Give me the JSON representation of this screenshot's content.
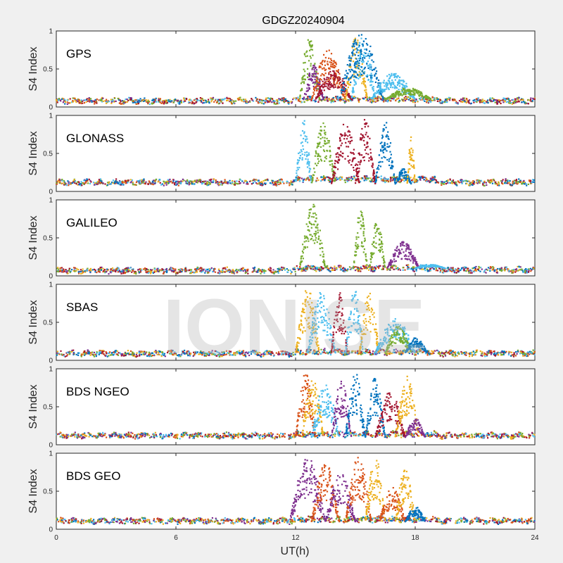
{
  "chart_data": {
    "type": "scatter",
    "title": "GDGZ20240904",
    "xlabel": "UT(h)",
    "ylabel": "S4 Index",
    "xlim": [
      0,
      24
    ],
    "ylim": [
      0,
      1
    ],
    "xticks": [
      0,
      6,
      12,
      18,
      24
    ],
    "yticks": [
      0,
      0.5,
      1
    ],
    "ytick_labels": [
      "0",
      "0.5",
      "1"
    ],
    "watermark": "IONISE",
    "series_colors": [
      "#0072BD",
      "#D95319",
      "#EDB120",
      "#7E2F8E",
      "#77AC30",
      "#4DBEEE",
      "#A2142F"
    ],
    "panels": [
      {
        "name": "GPS",
        "baseline": [
          {
            "x0": 0,
            "x1": 12,
            "y": 0.08
          },
          {
            "x0": 12,
            "x1": 19,
            "y": 0.1
          },
          {
            "x0": 19,
            "x1": 24,
            "y": 0.08
          }
        ],
        "bursts": [
          {
            "color": 4,
            "t0": 12.2,
            "t1": 13.2,
            "peak": 0.95
          },
          {
            "color": 3,
            "t0": 12.4,
            "t1": 13.4,
            "peak": 0.55
          },
          {
            "color": 1,
            "t0": 12.8,
            "t1": 14.5,
            "peak": 0.75
          },
          {
            "color": 6,
            "t0": 13.0,
            "t1": 14.8,
            "peak": 0.5
          },
          {
            "color": 2,
            "t0": 14.5,
            "t1": 15.6,
            "peak": 0.95
          },
          {
            "color": 5,
            "t0": 14.8,
            "t1": 16.0,
            "peak": 0.95
          },
          {
            "color": 0,
            "t0": 14.2,
            "t1": 16.4,
            "peak": 0.98
          },
          {
            "color": 5,
            "t0": 15.8,
            "t1": 18.0,
            "peak": 0.45
          },
          {
            "color": 4,
            "t0": 16.5,
            "t1": 18.8,
            "peak": 0.25
          }
        ]
      },
      {
        "name": "GLONASS",
        "baseline": [
          {
            "x0": 0,
            "x1": 12,
            "y": 0.12
          },
          {
            "x0": 12,
            "x1": 19,
            "y": 0.16
          },
          {
            "x0": 19,
            "x1": 24,
            "y": 0.12
          }
        ],
        "bursts": [
          {
            "color": 5,
            "t0": 12.0,
            "t1": 12.8,
            "peak": 0.95
          },
          {
            "color": 4,
            "t0": 12.8,
            "t1": 14.0,
            "peak": 0.9
          },
          {
            "color": 6,
            "t0": 13.8,
            "t1": 15.2,
            "peak": 0.9
          },
          {
            "color": 6,
            "t0": 15.0,
            "t1": 16.0,
            "peak": 0.95
          },
          {
            "color": 0,
            "t0": 16.0,
            "t1": 17.0,
            "peak": 0.95
          },
          {
            "color": 0,
            "t0": 17.0,
            "t1": 17.8,
            "peak": 0.3
          },
          {
            "color": 2,
            "t0": 17.6,
            "t1": 18.0,
            "peak": 0.75
          }
        ]
      },
      {
        "name": "GALILEO",
        "baseline": [
          {
            "x0": 0,
            "x1": 12,
            "y": 0.07
          },
          {
            "x0": 12,
            "x1": 19,
            "y": 0.1
          },
          {
            "x0": 19,
            "x1": 24,
            "y": 0.08
          }
        ],
        "bursts": [
          {
            "color": 4,
            "t0": 12.2,
            "t1": 13.5,
            "peak": 0.95
          },
          {
            "color": 4,
            "t0": 14.9,
            "t1": 15.6,
            "peak": 0.9
          },
          {
            "color": 4,
            "t0": 15.7,
            "t1": 16.5,
            "peak": 0.75
          },
          {
            "color": 3,
            "t0": 16.6,
            "t1": 18.2,
            "peak": 0.45
          },
          {
            "color": 5,
            "t0": 18.0,
            "t1": 19.5,
            "peak": 0.15
          }
        ]
      },
      {
        "name": "SBAS",
        "baseline": [
          {
            "x0": 0,
            "x1": 12,
            "y": 0.09
          },
          {
            "x0": 12,
            "x1": 19,
            "y": 0.11
          },
          {
            "x0": 19,
            "x1": 24,
            "y": 0.09
          }
        ],
        "bursts": [
          {
            "color": 2,
            "t0": 12.0,
            "t1": 13.2,
            "peak": 0.95
          },
          {
            "color": 5,
            "t0": 12.6,
            "t1": 14.0,
            "peak": 0.9
          },
          {
            "color": 6,
            "t0": 13.8,
            "t1": 14.6,
            "peak": 0.9
          },
          {
            "color": 5,
            "t0": 14.5,
            "t1": 15.4,
            "peak": 0.95
          },
          {
            "color": 2,
            "t0": 15.2,
            "t1": 16.2,
            "peak": 0.9
          },
          {
            "color": 5,
            "t0": 16.0,
            "t1": 18.0,
            "peak": 0.55
          },
          {
            "color": 4,
            "t0": 16.5,
            "t1": 17.8,
            "peak": 0.45
          },
          {
            "color": 0,
            "t0": 17.5,
            "t1": 18.6,
            "peak": 0.3
          }
        ]
      },
      {
        "name": "BDS NGEO",
        "baseline": [
          {
            "x0": 0,
            "x1": 12,
            "y": 0.12
          },
          {
            "x0": 12,
            "x1": 19,
            "y": 0.14
          },
          {
            "x0": 19,
            "x1": 24,
            "y": 0.12
          }
        ],
        "bursts": [
          {
            "color": 1,
            "t0": 12.0,
            "t1": 13.0,
            "peak": 0.95
          },
          {
            "color": 2,
            "t0": 12.3,
            "t1": 13.4,
            "peak": 0.9
          },
          {
            "color": 5,
            "t0": 12.8,
            "t1": 14.2,
            "peak": 0.8
          },
          {
            "color": 3,
            "t0": 13.8,
            "t1": 14.8,
            "peak": 0.85
          },
          {
            "color": 0,
            "t0": 14.5,
            "t1": 15.5,
            "peak": 0.95
          },
          {
            "color": 0,
            "t0": 15.5,
            "t1": 16.5,
            "peak": 0.9
          },
          {
            "color": 6,
            "t0": 16.0,
            "t1": 17.5,
            "peak": 0.7
          },
          {
            "color": 2,
            "t0": 17.0,
            "t1": 18.2,
            "peak": 0.9
          },
          {
            "color": 3,
            "t0": 17.5,
            "t1": 18.5,
            "peak": 0.35
          }
        ]
      },
      {
        "name": "BDS GEO",
        "baseline": [
          {
            "x0": 0,
            "x1": 12,
            "y": 0.11
          },
          {
            "x0": 12,
            "x1": 19,
            "y": 0.13
          },
          {
            "x0": 19,
            "x1": 24,
            "y": 0.11
          }
        ],
        "bursts": [
          {
            "color": 3,
            "t0": 11.7,
            "t1": 13.5,
            "peak": 0.95
          },
          {
            "color": 1,
            "t0": 12.8,
            "t1": 14.2,
            "peak": 0.9
          },
          {
            "color": 3,
            "t0": 13.5,
            "t1": 15.0,
            "peak": 0.75
          },
          {
            "color": 1,
            "t0": 14.5,
            "t1": 15.8,
            "peak": 0.95
          },
          {
            "color": 2,
            "t0": 15.5,
            "t1": 16.5,
            "peak": 0.95
          },
          {
            "color": 1,
            "t0": 16.2,
            "t1": 17.5,
            "peak": 0.55
          },
          {
            "color": 2,
            "t0": 17.0,
            "t1": 18.0,
            "peak": 0.8
          },
          {
            "color": 0,
            "t0": 17.5,
            "t1": 18.5,
            "peak": 0.3
          }
        ]
      }
    ]
  }
}
